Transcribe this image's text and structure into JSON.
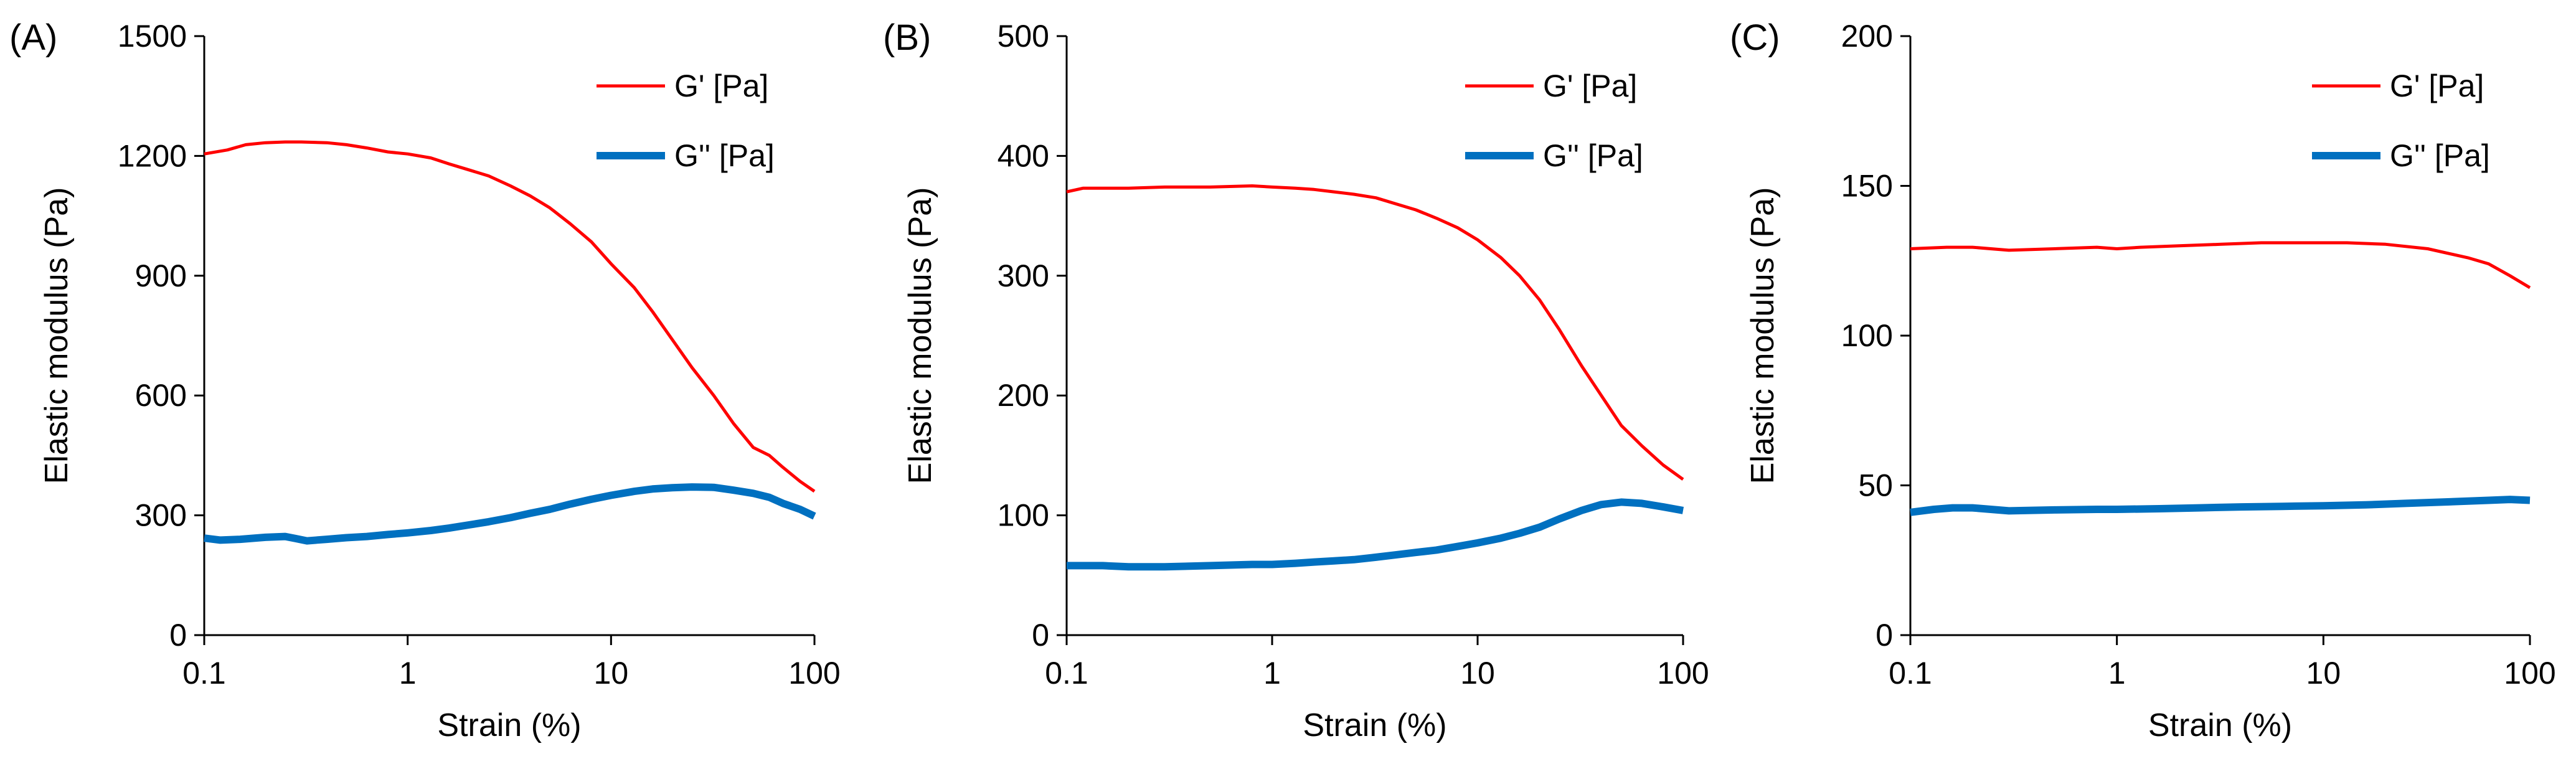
{
  "colors": {
    "gprime": "#ff0000",
    "gdouble": "#0070c0",
    "axis": "#000000"
  },
  "chart_data": [
    {
      "type": "line",
      "panel_label": "(A)",
      "xlabel": "Strain (%)",
      "ylabel": "Elastic modulus (Pa)",
      "xscale": "log",
      "xlim": [
        0.1,
        100
      ],
      "ylim": [
        0,
        1500
      ],
      "xticks": [
        0.1,
        1,
        10,
        100
      ],
      "xtick_labels": [
        "0.1",
        "1",
        "10",
        "100"
      ],
      "yticks": [
        0,
        300,
        600,
        900,
        1200,
        1500
      ],
      "ytick_labels": [
        "0",
        "300",
        "600",
        "900",
        "1200",
        "1500"
      ],
      "legend_position": "top-right",
      "series": [
        {
          "name": "G' [Pa]",
          "color": "#ff0000",
          "points": [
            [
              0.1,
              1205
            ],
            [
              0.13,
              1215
            ],
            [
              0.16,
              1228
            ],
            [
              0.2,
              1233
            ],
            [
              0.25,
              1235
            ],
            [
              0.3,
              1235
            ],
            [
              0.4,
              1233
            ],
            [
              0.5,
              1228
            ],
            [
              0.63,
              1220
            ],
            [
              0.8,
              1210
            ],
            [
              1.0,
              1205
            ],
            [
              1.3,
              1195
            ],
            [
              1.6,
              1180
            ],
            [
              2.0,
              1165
            ],
            [
              2.5,
              1150
            ],
            [
              3.2,
              1125
            ],
            [
              4.0,
              1100
            ],
            [
              5.0,
              1070
            ],
            [
              6.3,
              1030
            ],
            [
              8.0,
              985
            ],
            [
              10,
              930
            ],
            [
              13,
              870
            ],
            [
              16,
              810
            ],
            [
              20,
              740
            ],
            [
              25,
              670
            ],
            [
              32,
              600
            ],
            [
              40,
              530
            ],
            [
              50,
              470
            ],
            [
              60,
              450
            ],
            [
              70,
              420
            ],
            [
              85,
              385
            ],
            [
              100,
              360
            ]
          ]
        },
        {
          "name": "G'' [Pa]",
          "color": "#0070c0",
          "points": [
            [
              0.1,
              243
            ],
            [
              0.12,
              238
            ],
            [
              0.15,
              240
            ],
            [
              0.2,
              245
            ],
            [
              0.25,
              247
            ],
            [
              0.28,
              242
            ],
            [
              0.32,
              236
            ],
            [
              0.4,
              240
            ],
            [
              0.5,
              244
            ],
            [
              0.63,
              247
            ],
            [
              0.8,
              252
            ],
            [
              1.0,
              256
            ],
            [
              1.3,
              262
            ],
            [
              1.6,
              268
            ],
            [
              2.0,
              276
            ],
            [
              2.5,
              284
            ],
            [
              3.2,
              294
            ],
            [
              4.0,
              305
            ],
            [
              5.0,
              315
            ],
            [
              6.3,
              328
            ],
            [
              8.0,
              340
            ],
            [
              10,
              350
            ],
            [
              13,
              360
            ],
            [
              16,
              366
            ],
            [
              20,
              369
            ],
            [
              25,
              371
            ],
            [
              32,
              370
            ],
            [
              40,
              363
            ],
            [
              50,
              355
            ],
            [
              60,
              345
            ],
            [
              70,
              330
            ],
            [
              85,
              315
            ],
            [
              100,
              298
            ]
          ]
        }
      ]
    },
    {
      "type": "line",
      "panel_label": "(B)",
      "xlabel": "Strain (%)",
      "ylabel": "Elastic modulus (Pa)",
      "xscale": "log",
      "xlim": [
        0.1,
        100
      ],
      "ylim": [
        0,
        500
      ],
      "xticks": [
        0.1,
        1,
        10,
        100
      ],
      "xtick_labels": [
        "0.1",
        "1",
        "10",
        "100"
      ],
      "yticks": [
        0,
        100,
        200,
        300,
        400,
        500
      ],
      "ytick_labels": [
        "0",
        "100",
        "200",
        "300",
        "400",
        "500"
      ],
      "legend_position": "top-right",
      "series": [
        {
          "name": "G' [Pa]",
          "color": "#ff0000",
          "points": [
            [
              0.1,
              370
            ],
            [
              0.12,
              373
            ],
            [
              0.2,
              373
            ],
            [
              0.3,
              374
            ],
            [
              0.5,
              374
            ],
            [
              0.8,
              375
            ],
            [
              1.0,
              374
            ],
            [
              1.3,
              373
            ],
            [
              1.6,
              372
            ],
            [
              2.0,
              370
            ],
            [
              2.5,
              368
            ],
            [
              3.2,
              365
            ],
            [
              4.0,
              360
            ],
            [
              5.0,
              355
            ],
            [
              6.3,
              348
            ],
            [
              8.0,
              340
            ],
            [
              10,
              330
            ],
            [
              13,
              315
            ],
            [
              16,
              300
            ],
            [
              20,
              280
            ],
            [
              25,
              255
            ],
            [
              32,
              225
            ],
            [
              40,
              200
            ],
            [
              50,
              175
            ],
            [
              63,
              158
            ],
            [
              80,
              142
            ],
            [
              100,
              130
            ]
          ]
        },
        {
          "name": "G'' [Pa]",
          "color": "#0070c0",
          "points": [
            [
              0.1,
              58
            ],
            [
              0.15,
              58
            ],
            [
              0.2,
              57
            ],
            [
              0.3,
              57
            ],
            [
              0.5,
              58
            ],
            [
              0.8,
              59
            ],
            [
              1.0,
              59
            ],
            [
              1.3,
              60
            ],
            [
              1.6,
              61
            ],
            [
              2.0,
              62
            ],
            [
              2.5,
              63
            ],
            [
              3.2,
              65
            ],
            [
              4.0,
              67
            ],
            [
              5.0,
              69
            ],
            [
              6.3,
              71
            ],
            [
              8.0,
              74
            ],
            [
              10,
              77
            ],
            [
              13,
              81
            ],
            [
              16,
              85
            ],
            [
              20,
              90
            ],
            [
              25,
              97
            ],
            [
              32,
              104
            ],
            [
              40,
              109
            ],
            [
              50,
              111
            ],
            [
              63,
              110
            ],
            [
              80,
              107
            ],
            [
              100,
              104
            ]
          ]
        }
      ]
    },
    {
      "type": "line",
      "panel_label": "(C)",
      "xlabel": "Strain (%)",
      "ylabel": "Elastic modulus (Pa)",
      "xscale": "log",
      "xlim": [
        0.1,
        100
      ],
      "ylim": [
        0,
        200
      ],
      "xticks": [
        0.1,
        1,
        10,
        100
      ],
      "xtick_labels": [
        "0.1",
        "1",
        "10",
        "100"
      ],
      "yticks": [
        0,
        50,
        100,
        150,
        200
      ],
      "ytick_labels": [
        "0",
        "50",
        "100",
        "150",
        "200"
      ],
      "legend_position": "top-right",
      "series": [
        {
          "name": "G' [Pa]",
          "color": "#ff0000",
          "points": [
            [
              0.1,
              129
            ],
            [
              0.15,
              129.5
            ],
            [
              0.2,
              129.5
            ],
            [
              0.3,
              128.5
            ],
            [
              0.5,
              129
            ],
            [
              0.8,
              129.5
            ],
            [
              1.0,
              129
            ],
            [
              1.3,
              129.5
            ],
            [
              2.0,
              130
            ],
            [
              3.2,
              130.5
            ],
            [
              5.0,
              131
            ],
            [
              8.0,
              131
            ],
            [
              13,
              131
            ],
            [
              20,
              130.5
            ],
            [
              32,
              129
            ],
            [
              50,
              126
            ],
            [
              63,
              124
            ],
            [
              80,
              120
            ],
            [
              100,
              116
            ]
          ]
        },
        {
          "name": "G'' [Pa]",
          "color": "#0070c0",
          "points": [
            [
              0.1,
              41
            ],
            [
              0.13,
              42
            ],
            [
              0.16,
              42.5
            ],
            [
              0.2,
              42.5
            ],
            [
              0.3,
              41.5
            ],
            [
              0.5,
              41.8
            ],
            [
              0.8,
              42
            ],
            [
              1.0,
              42
            ],
            [
              1.6,
              42.2
            ],
            [
              2.5,
              42.5
            ],
            [
              4.0,
              42.8
            ],
            [
              6.3,
              43
            ],
            [
              10,
              43.2
            ],
            [
              16,
              43.5
            ],
            [
              25,
              44
            ],
            [
              40,
              44.5
            ],
            [
              63,
              45
            ],
            [
              80,
              45.3
            ],
            [
              100,
              45
            ]
          ]
        }
      ]
    }
  ]
}
